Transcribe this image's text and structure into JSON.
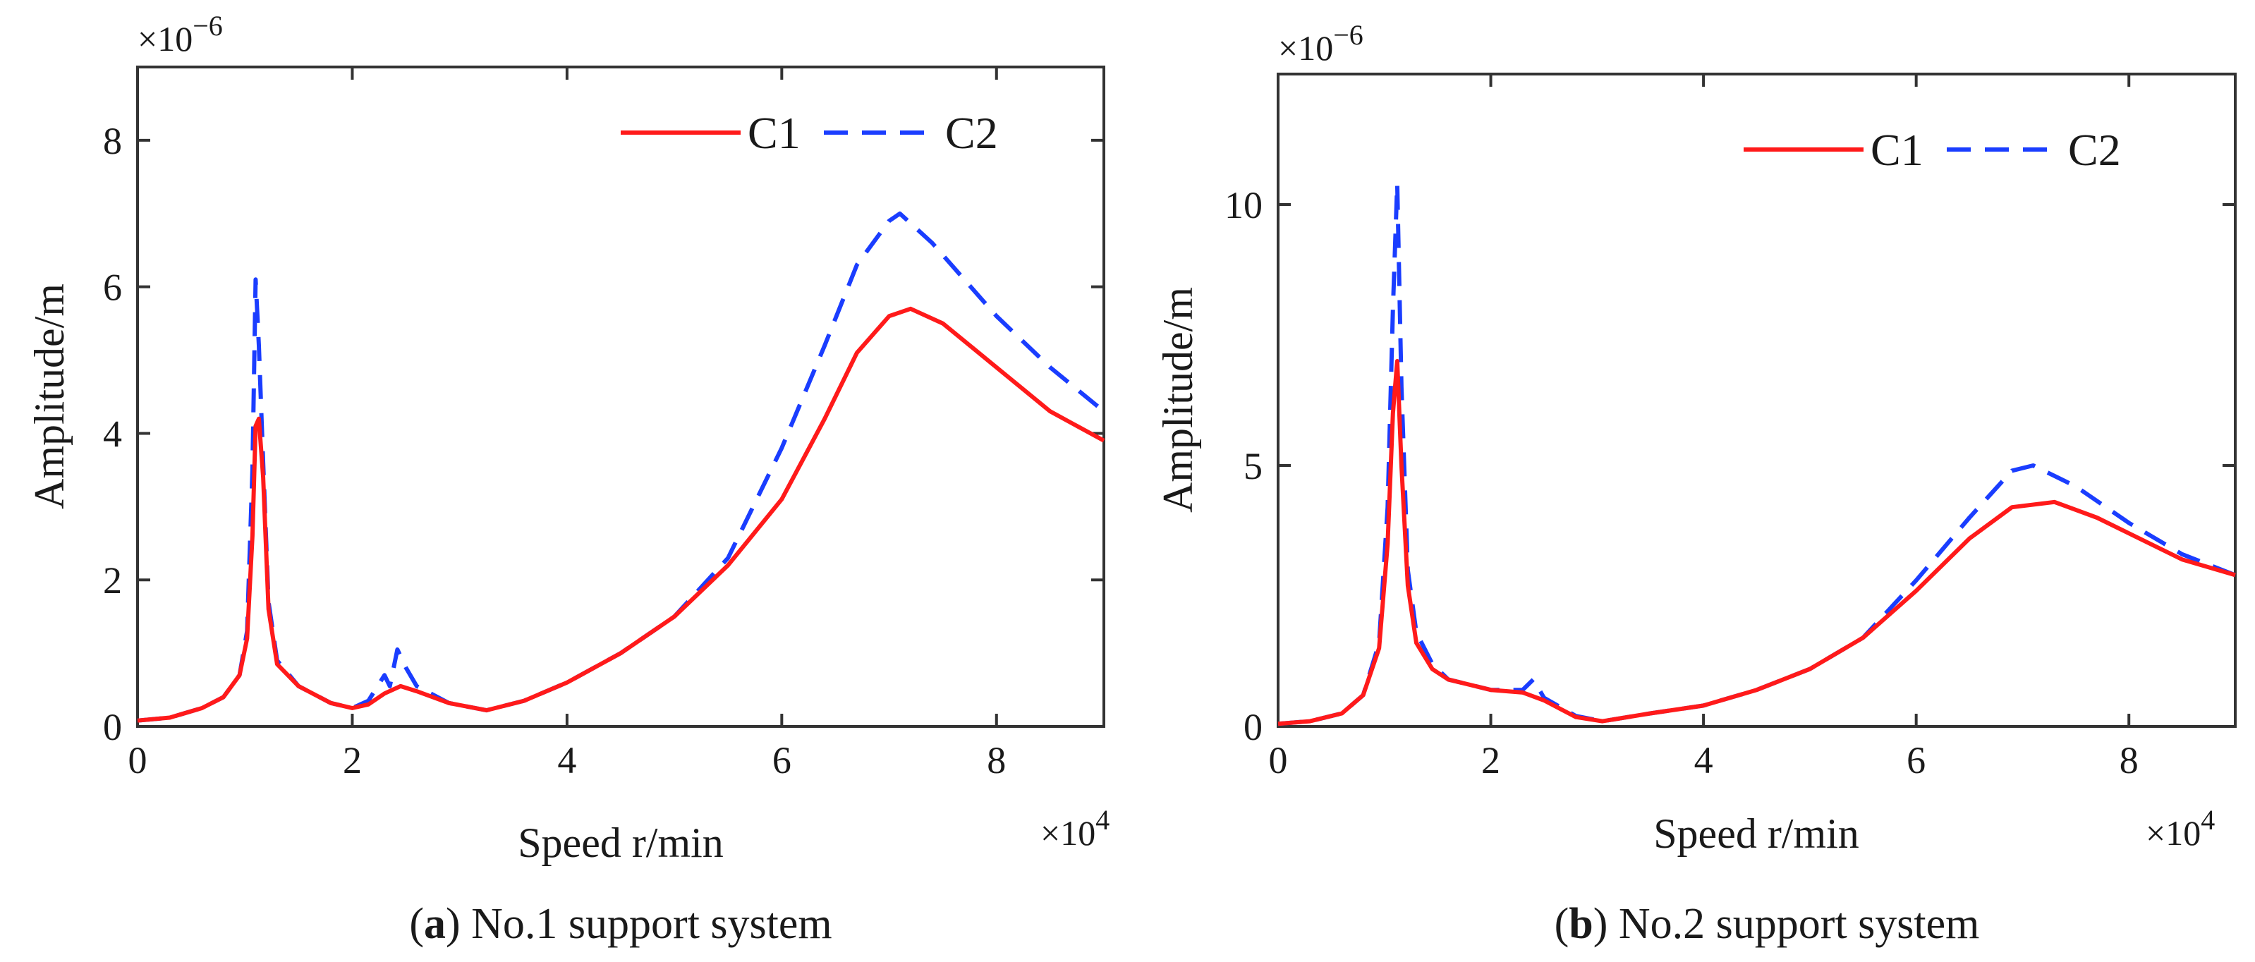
{
  "chart_data": [
    {
      "type": "line",
      "panel": "a",
      "caption_letter": "a",
      "caption_text": "No.1 support system",
      "xlabel": "Speed r/min",
      "ylabel": "Amplitude/m",
      "x_multiplier": "×10",
      "x_multiplier_exp": "4",
      "y_multiplier": "×10",
      "y_multiplier_exp": "−6",
      "xlim": [
        0,
        9
      ],
      "ylim": [
        0,
        9
      ],
      "x_ticks": [
        0,
        2,
        4,
        6,
        8
      ],
      "y_ticks": [
        0,
        2,
        4,
        6,
        8
      ],
      "legend_position": "top-right",
      "series": [
        {
          "name": "C1",
          "color": "#ff1a1a",
          "dash": "solid",
          "x": [
            0,
            0.3,
            0.6,
            0.8,
            0.95,
            1.02,
            1.07,
            1.1,
            1.13,
            1.17,
            1.22,
            1.3,
            1.5,
            1.8,
            2.0,
            2.15,
            2.3,
            2.45,
            2.6,
            2.9,
            3.25,
            3.6,
            4.0,
            4.5,
            5.0,
            5.5,
            6.0,
            6.4,
            6.7,
            7.0,
            7.2,
            7.5,
            8.0,
            8.5,
            9.0
          ],
          "y": [
            0.08,
            0.12,
            0.25,
            0.4,
            0.7,
            1.2,
            2.6,
            4.1,
            4.2,
            3.4,
            1.6,
            0.85,
            0.55,
            0.32,
            0.25,
            0.3,
            0.45,
            0.55,
            0.48,
            0.32,
            0.22,
            0.35,
            0.6,
            1.0,
            1.5,
            2.2,
            3.1,
            4.2,
            5.1,
            5.6,
            5.7,
            5.5,
            4.9,
            4.3,
            3.9
          ]
        },
        {
          "name": "C2",
          "color": "#1a3dff",
          "dash": "dashed",
          "x": [
            0,
            0.3,
            0.6,
            0.8,
            0.95,
            1.02,
            1.07,
            1.1,
            1.13,
            1.17,
            1.22,
            1.3,
            1.5,
            1.8,
            2.0,
            2.15,
            2.3,
            2.35,
            2.42,
            2.5,
            2.6,
            2.9,
            3.25,
            3.6,
            4.0,
            4.5,
            5.0,
            5.5,
            6.0,
            6.4,
            6.7,
            7.0,
            7.1,
            7.4,
            8.0,
            8.5,
            9.0
          ],
          "y": [
            0.08,
            0.12,
            0.25,
            0.4,
            0.7,
            1.3,
            3.5,
            6.1,
            5.2,
            3.6,
            1.7,
            0.9,
            0.55,
            0.32,
            0.25,
            0.35,
            0.7,
            0.55,
            1.05,
            0.8,
            0.55,
            0.32,
            0.22,
            0.35,
            0.6,
            1.0,
            1.5,
            2.3,
            3.8,
            5.2,
            6.3,
            6.9,
            7.0,
            6.6,
            5.6,
            4.9,
            4.3
          ]
        }
      ]
    },
    {
      "type": "line",
      "panel": "b",
      "caption_letter": "b",
      "caption_text": "No.2 support system",
      "xlabel": "Speed r/min",
      "ylabel": "Amplitude/m",
      "x_multiplier": "×10",
      "x_multiplier_exp": "4",
      "y_multiplier": "×10",
      "y_multiplier_exp": "−6",
      "xlim": [
        0,
        9
      ],
      "ylim": [
        0,
        12.5
      ],
      "x_ticks": [
        0,
        2,
        4,
        6,
        8
      ],
      "y_ticks": [
        0,
        5,
        10
      ],
      "legend_position": "top-right",
      "series": [
        {
          "name": "C1",
          "color": "#ff1a1a",
          "dash": "solid",
          "x": [
            0,
            0.3,
            0.6,
            0.8,
            0.95,
            1.03,
            1.08,
            1.12,
            1.16,
            1.22,
            1.3,
            1.45,
            1.6,
            2.0,
            2.3,
            2.5,
            2.8,
            3.05,
            3.5,
            4.0,
            4.5,
            5.0,
            5.5,
            6.0,
            6.5,
            6.9,
            7.3,
            7.7,
            8.0,
            8.5,
            9.0
          ],
          "y": [
            0.05,
            0.1,
            0.25,
            0.6,
            1.5,
            3.5,
            6.0,
            7.0,
            5.0,
            2.7,
            1.6,
            1.1,
            0.9,
            0.7,
            0.65,
            0.5,
            0.18,
            0.1,
            0.25,
            0.4,
            0.7,
            1.1,
            1.7,
            2.6,
            3.6,
            4.2,
            4.3,
            4.0,
            3.7,
            3.2,
            2.9
          ]
        },
        {
          "name": "C2",
          "color": "#1a3dff",
          "dash": "dashed",
          "x": [
            0,
            0.3,
            0.6,
            0.8,
            0.95,
            1.03,
            1.08,
            1.12,
            1.16,
            1.22,
            1.3,
            1.45,
            1.6,
            2.0,
            2.3,
            2.4,
            2.5,
            2.8,
            3.05,
            3.5,
            4.0,
            4.5,
            5.0,
            5.5,
            6.0,
            6.5,
            6.9,
            7.1,
            7.5,
            8.0,
            8.5,
            9.0
          ],
          "y": [
            0.05,
            0.1,
            0.25,
            0.6,
            1.6,
            4.2,
            8.0,
            10.4,
            6.5,
            3.0,
            1.8,
            1.2,
            0.9,
            0.7,
            0.7,
            0.9,
            0.55,
            0.2,
            0.1,
            0.25,
            0.4,
            0.7,
            1.1,
            1.7,
            2.8,
            4.0,
            4.9,
            5.0,
            4.6,
            3.9,
            3.3,
            2.9
          ]
        }
      ]
    }
  ]
}
